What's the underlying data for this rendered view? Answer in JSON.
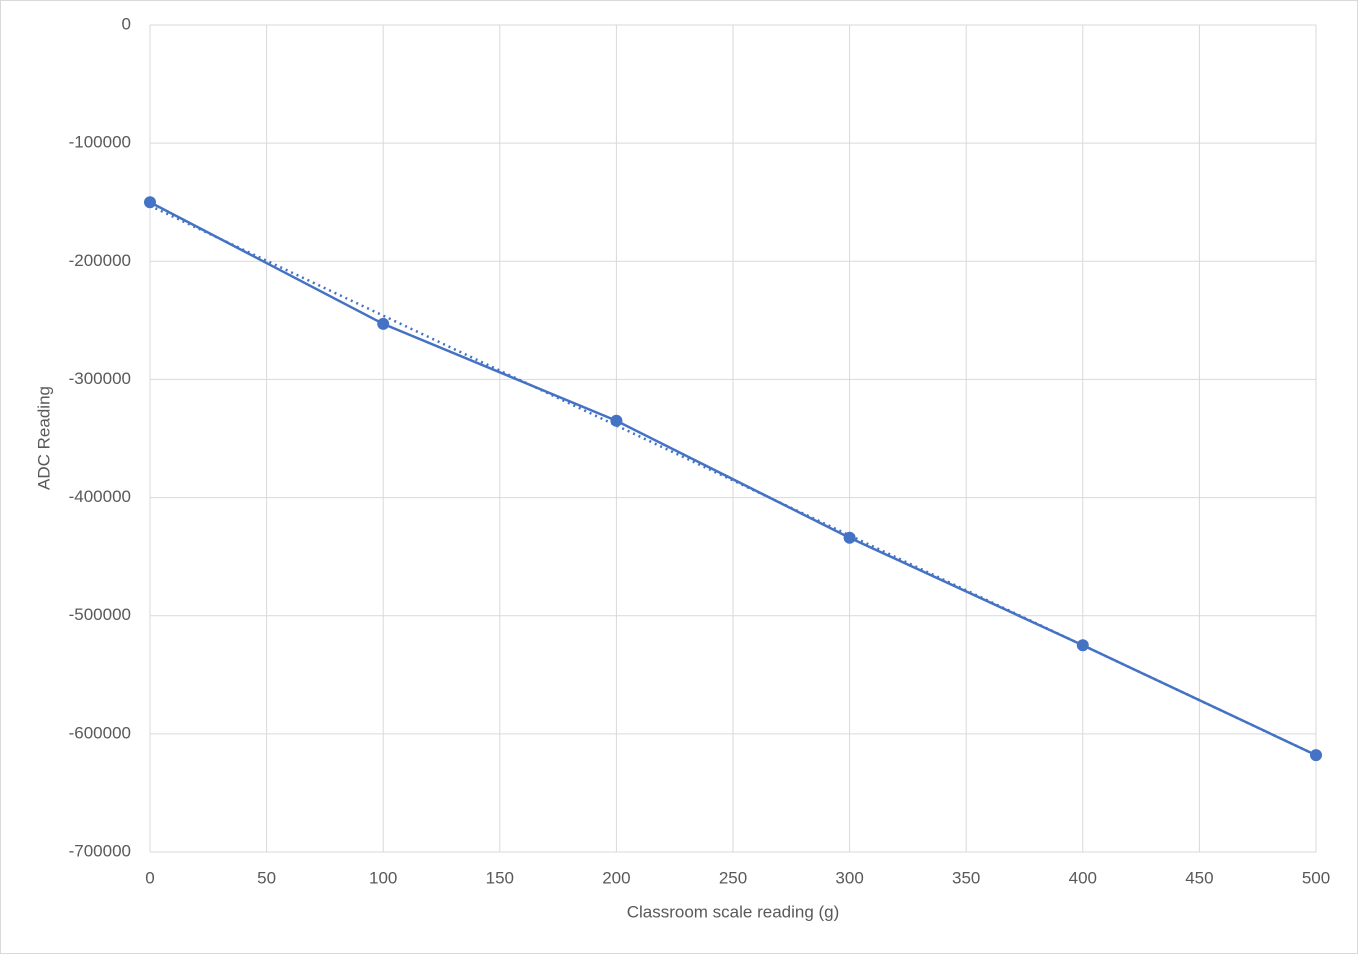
{
  "chart_data": {
    "type": "scatter",
    "x_label": "Classroom scale reading (g)",
    "y_label": "ADC Reading",
    "x": [
      0,
      100,
      200,
      300,
      400,
      500
    ],
    "series": [
      {
        "color": "#4472c4",
        "values": [
          -150000,
          -253000,
          -335000,
          -434000,
          -525000,
          -618000
        ]
      }
    ],
    "trendline": {
      "x": [
        0,
        500
      ],
      "values": [
        -153000,
        -618000
      ],
      "color": "#4472c4",
      "style": "dotted"
    },
    "xlim": [
      0,
      500
    ],
    "ylim": [
      -700000,
      0
    ],
    "xticks": [
      0,
      50,
      100,
      150,
      200,
      250,
      300,
      350,
      400,
      450,
      500
    ],
    "yticks": [
      0,
      -100000,
      -200000,
      -300000,
      -400000,
      -500000,
      -600000,
      -700000
    ],
    "grid": true
  }
}
